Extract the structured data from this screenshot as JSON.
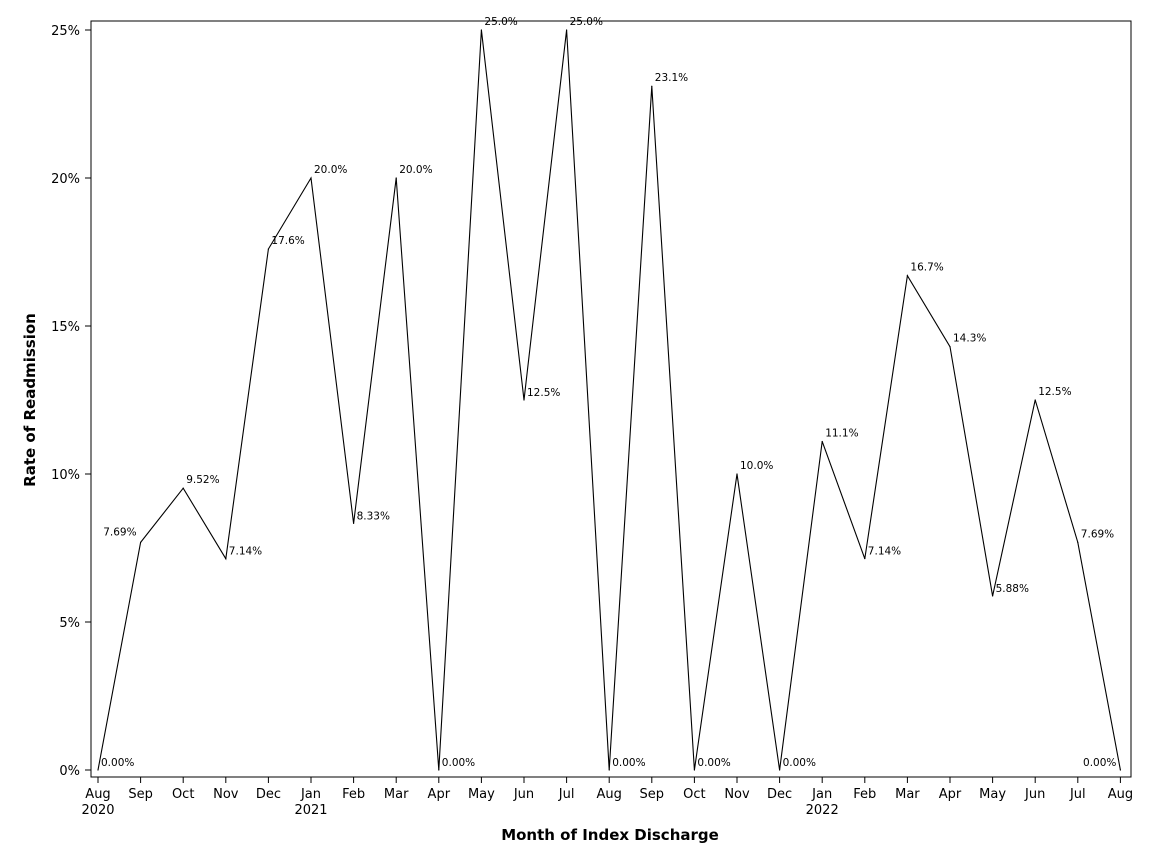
{
  "chart_data": {
    "type": "line",
    "xlabel": "Month of Index Discharge",
    "ylabel": "Rate of Readmission",
    "x": [
      "2020-08",
      "2020-09",
      "2020-10",
      "2020-11",
      "2020-12",
      "2021-01",
      "2021-02",
      "2021-03",
      "2021-04",
      "2021-05",
      "2021-06",
      "2021-07",
      "2021-08",
      "2021-09",
      "2021-10",
      "2021-11",
      "2021-12",
      "2022-01",
      "2022-02",
      "2022-03",
      "2022-04",
      "2022-05",
      "2022-06",
      "2022-07",
      "2022-08"
    ],
    "x_tick_labels": [
      "Aug",
      "Sep",
      "Oct",
      "Nov",
      "Dec",
      "Jan",
      "Feb",
      "Mar",
      "Apr",
      "May",
      "Jun",
      "Jul",
      "Aug",
      "Sep",
      "Oct",
      "Nov",
      "Dec",
      "Jan",
      "Feb",
      "Mar",
      "Apr",
      "May",
      "Jun",
      "Jul",
      "Aug"
    ],
    "x_tick_sublabels": [
      "2020",
      "",
      "",
      "",
      "",
      "2021",
      "",
      "",
      "",
      "",
      "",
      "",
      "",
      "",
      "",
      "",
      "",
      "2022",
      "",
      "",
      "",
      "",
      "",
      "",
      ""
    ],
    "y_ticks": [
      0,
      5,
      10,
      15,
      20,
      25
    ],
    "y_tick_labels": [
      "0%",
      "5%",
      "10%",
      "15%",
      "20%",
      "25%"
    ],
    "ylim": [
      0,
      25
    ],
    "grid": false,
    "series": [
      {
        "values": [
          0,
          7.69,
          9.52,
          7.14,
          17.6,
          20.0,
          8.33,
          20.0,
          0,
          25.0,
          12.5,
          25.0,
          0,
          23.1,
          0,
          10.0,
          0,
          11.1,
          7.14,
          16.7,
          14.3,
          5.88,
          12.5,
          7.69,
          0
        ],
        "labels": [
          "0.00%",
          "7.69%",
          "9.52%",
          "7.14%",
          "17.6%",
          "20.0%",
          "8.33%",
          "20.0%",
          "0.00%",
          "25.0%",
          "12.5%",
          "25.0%",
          "0.00%",
          "23.1%",
          "0.00%",
          "10.0%",
          "0.00%",
          "11.1%",
          "7.14%",
          "16.7%",
          "14.3%",
          "5.88%",
          "12.5%",
          "7.69%",
          "0.00%"
        ]
      }
    ]
  }
}
